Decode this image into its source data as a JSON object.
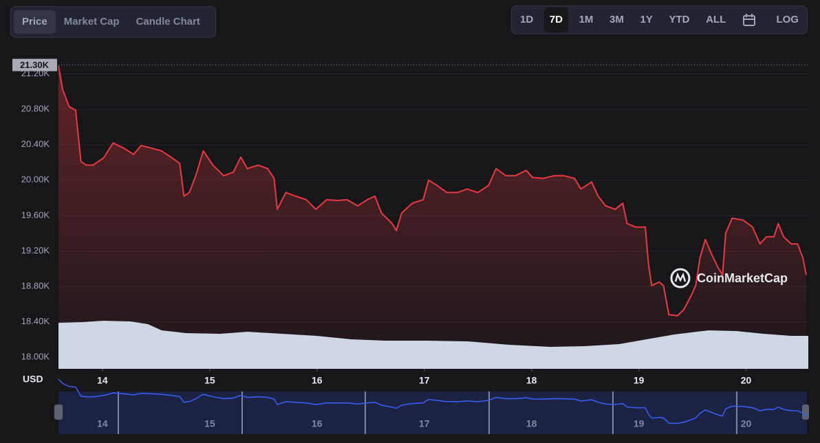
{
  "ui": {
    "tabs": [
      "Price",
      "Market Cap",
      "Candle Chart"
    ],
    "selected_tab": "Price",
    "ranges": [
      "1D",
      "7D",
      "1M",
      "3M",
      "1Y",
      "YTD",
      "ALL"
    ],
    "selected_range": "7D",
    "log": "LOG",
    "watermark": "CoinMarketCap"
  },
  "chart_data": {
    "type": "area",
    "y_unit": "USD",
    "color": "#ea3943",
    "current_price": {
      "value": 21300,
      "label": "21.30K"
    },
    "x": [
      13.59,
      13.63,
      13.69,
      13.75,
      13.8,
      13.85,
      13.91,
      14.01,
      14.1,
      14.2,
      14.29,
      14.36,
      14.46,
      14.55,
      14.65,
      14.72,
      14.76,
      14.81,
      14.87,
      14.94,
      15.03,
      15.13,
      15.22,
      15.29,
      15.35,
      15.45,
      15.54,
      15.6,
      15.63,
      15.71,
      15.8,
      15.9,
      15.99,
      16.09,
      16.19,
      16.28,
      16.38,
      16.47,
      16.54,
      16.6,
      16.7,
      16.74,
      16.79,
      16.89,
      16.99,
      17.04,
      17.12,
      17.21,
      17.31,
      17.4,
      17.5,
      17.6,
      17.67,
      17.76,
      17.85,
      17.95,
      18.01,
      18.11,
      18.21,
      18.3,
      18.4,
      18.46,
      18.56,
      18.62,
      18.69,
      18.78,
      18.85,
      18.89,
      18.97,
      19.06,
      19.09,
      19.12,
      19.19,
      19.23,
      19.28,
      19.36,
      19.42,
      19.49,
      19.53,
      19.57,
      19.62,
      19.68,
      19.74,
      19.78,
      19.81,
      19.87,
      19.97,
      20.06,
      20.13,
      20.19,
      20.26,
      20.3,
      20.35,
      20.42,
      20.48,
      20.53,
      20.56
    ],
    "values": [
      21290,
      21020,
      20830,
      20790,
      20210,
      20170,
      20170,
      20250,
      20420,
      20360,
      20290,
      20390,
      20360,
      20330,
      20250,
      20190,
      19820,
      19860,
      20050,
      20330,
      20170,
      20050,
      20090,
      20260,
      20130,
      20170,
      20130,
      20020,
      19670,
      19860,
      19820,
      19780,
      19670,
      19780,
      19770,
      19780,
      19710,
      19780,
      19820,
      19630,
      19510,
      19430,
      19630,
      19740,
      19780,
      20000,
      19940,
      19860,
      19860,
      19900,
      19860,
      19940,
      20130,
      20050,
      20050,
      20110,
      20030,
      20020,
      20050,
      20050,
      20020,
      19900,
      19980,
      19820,
      19710,
      19670,
      19740,
      19510,
      19470,
      19470,
      19050,
      18810,
      18850,
      18810,
      18480,
      18470,
      18540,
      18700,
      18810,
      19120,
      19330,
      19160,
      19010,
      18930,
      19400,
      19570,
      19550,
      19470,
      19280,
      19360,
      19360,
      19510,
      19360,
      19280,
      19280,
      19120,
      18930
    ],
    "xlim": [
      13.59,
      20.58
    ],
    "ylim": [
      17870,
      21390
    ],
    "xticks": [
      14,
      15,
      16,
      17,
      18,
      19,
      20
    ],
    "yticks": [
      {
        "value": 18000,
        "label": "18.00K"
      },
      {
        "value": 18400,
        "label": "18.40K"
      },
      {
        "value": 18800,
        "label": "18.80K"
      },
      {
        "value": 19200,
        "label": "19.20K"
      },
      {
        "value": 19600,
        "label": "19.60K"
      },
      {
        "value": 20000,
        "label": "20.00K"
      },
      {
        "value": 20400,
        "label": "20.40K"
      },
      {
        "value": 20800,
        "label": "20.80K"
      },
      {
        "value": 21200,
        "label": "21.20K"
      }
    ],
    "grid": true
  }
}
